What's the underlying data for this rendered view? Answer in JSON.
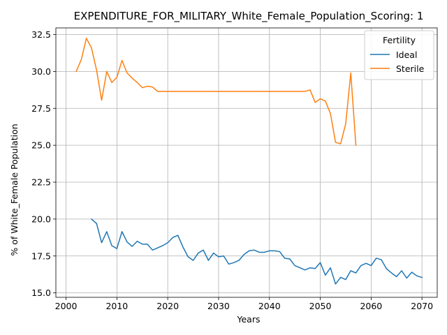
{
  "chart_data": {
    "type": "line",
    "title": "EXPENDITURE_FOR_MILITARY_White_Female_Population_Scoring: 1",
    "xlabel": "Years",
    "ylabel": "% of White_Female Population",
    "xlim": [
      1998,
      2073
    ],
    "ylim": [
      14.7,
      32.95
    ],
    "xticks": [
      2000,
      2010,
      2020,
      2030,
      2040,
      2050,
      2060,
      2070
    ],
    "yticks": [
      15.0,
      17.5,
      20.0,
      22.5,
      25.0,
      27.5,
      30.0,
      32.5
    ],
    "xtick_labels": [
      "2000",
      "2010",
      "2020",
      "2030",
      "2040",
      "2050",
      "2060",
      "2070"
    ],
    "ytick_labels": [
      "15.0",
      "17.5",
      "20.0",
      "22.5",
      "25.0",
      "27.5",
      "30.0",
      "32.5"
    ],
    "grid": true,
    "legend": {
      "title": "Fertility",
      "placement": "top-right"
    },
    "series": [
      {
        "name": "Ideal",
        "color": "#1f77b4",
        "x": [
          2005,
          2006,
          2007,
          2008,
          2009,
          2010,
          2011,
          2012,
          2013,
          2014,
          2015,
          2016,
          2017,
          2018,
          2019,
          2020,
          2021,
          2022,
          2023,
          2024,
          2025,
          2026,
          2027,
          2028,
          2029,
          2030,
          2031,
          2032,
          2033,
          2034,
          2035,
          2036,
          2037,
          2038,
          2039,
          2040,
          2041,
          2042,
          2043,
          2044,
          2045,
          2046,
          2047,
          2048,
          2049,
          2050,
          2051,
          2052,
          2053,
          2054,
          2055,
          2056,
          2057,
          2058,
          2059,
          2060,
          2061,
          2062,
          2063,
          2064,
          2065,
          2066,
          2067,
          2068,
          2069,
          2070
        ],
        "y": [
          20.0,
          19.7,
          18.4,
          19.15,
          18.2,
          18.0,
          19.15,
          18.45,
          18.15,
          18.5,
          18.3,
          18.3,
          17.9,
          18.05,
          18.2,
          18.4,
          18.75,
          18.9,
          18.1,
          17.45,
          17.2,
          17.7,
          17.9,
          17.2,
          17.7,
          17.45,
          17.5,
          16.95,
          17.05,
          17.2,
          17.6,
          17.85,
          17.9,
          17.75,
          17.75,
          17.85,
          17.85,
          17.8,
          17.35,
          17.3,
          16.85,
          16.7,
          16.55,
          16.7,
          16.65,
          17.05,
          16.2,
          16.7,
          15.6,
          16.05,
          15.9,
          16.5,
          16.35,
          16.85,
          17.0,
          16.85,
          17.35,
          17.25,
          16.65,
          16.35,
          16.1,
          16.5,
          16.0,
          16.4,
          16.15,
          16.05
        ]
      },
      {
        "name": "Sterile",
        "color": "#ff7f0e",
        "x": [
          2002,
          2003,
          2004,
          2005,
          2006,
          2007,
          2008,
          2009,
          2010,
          2011,
          2012,
          2013,
          2014,
          2015,
          2016,
          2017,
          2018,
          2019,
          2020,
          2021,
          2022,
          2023,
          2024,
          2025,
          2026,
          2027,
          2028,
          2029,
          2030,
          2031,
          2032,
          2033,
          2034,
          2035,
          2036,
          2037,
          2038,
          2039,
          2040,
          2041,
          2042,
          2043,
          2044,
          2045,
          2046,
          2047,
          2048,
          2049,
          2050,
          2051,
          2052,
          2053,
          2054,
          2055,
          2056,
          2057
        ],
        "y": [
          30.0,
          30.8,
          32.25,
          31.6,
          30.1,
          28.05,
          30.0,
          29.25,
          29.6,
          30.75,
          29.9,
          29.55,
          29.25,
          28.9,
          29.0,
          28.95,
          28.65,
          28.65,
          28.65,
          28.65,
          28.65,
          28.65,
          28.65,
          28.65,
          28.65,
          28.65,
          28.65,
          28.65,
          28.65,
          28.65,
          28.65,
          28.65,
          28.65,
          28.65,
          28.65,
          28.65,
          28.65,
          28.65,
          28.65,
          28.65,
          28.65,
          28.65,
          28.65,
          28.65,
          28.65,
          28.65,
          28.75,
          27.9,
          28.15,
          28.0,
          27.15,
          25.2,
          25.1,
          26.45,
          29.9,
          25.0
        ]
      }
    ]
  }
}
